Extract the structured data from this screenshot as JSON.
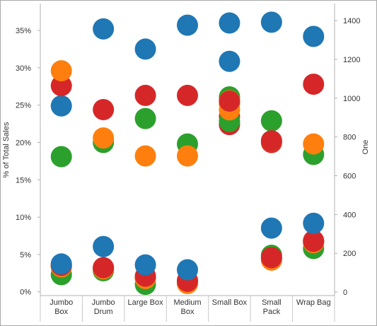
{
  "chart_data": {
    "type": "scatter",
    "categories": [
      "Jumbo Box",
      "Jumbo Drum",
      "Large Box",
      "Medium Box",
      "Small Box",
      "Small Pack",
      "Wrap Bag"
    ],
    "category_labels": [
      [
        "Jumbo",
        "Box"
      ],
      [
        "Jumbo",
        "Drum"
      ],
      [
        "Large Box"
      ],
      [
        "Medium",
        "Box"
      ],
      [
        "Small Box"
      ],
      [
        "Small",
        "Pack"
      ],
      [
        "Wrap Bag"
      ]
    ],
    "left_axis": {
      "label": "% of Total Sales",
      "ylim": [
        -0.5,
        38.6
      ],
      "ticks": [
        0,
        5,
        10,
        15,
        20,
        25,
        30,
        35
      ],
      "tick_labels": [
        "0%",
        "5%",
        "10%",
        "15%",
        "20%",
        "25%",
        "30%",
        "35%"
      ]
    },
    "right_axis": {
      "label": "One",
      "ylim": [
        -18,
        1488
      ],
      "ticks": [
        0,
        200,
        400,
        600,
        800,
        1000,
        1200,
        1400
      ],
      "tick_labels": [
        "0",
        "200",
        "400",
        "600",
        "800",
        "1000",
        "1200",
        "1400"
      ]
    },
    "grid": false,
    "legend": "none",
    "series": [
      {
        "color": "#1f77b4",
        "axis": "left",
        "values": [
          24.9,
          35.2,
          32.5,
          35.7,
          36.0,
          36.1,
          34.2
        ]
      },
      {
        "color": "#d62728",
        "axis": "left",
        "values": [
          27.6,
          24.4,
          26.3,
          26.3,
          22.4,
          20.0,
          27.8
        ]
      },
      {
        "color": "#2ca02c",
        "axis": "left",
        "values": [
          18.1,
          20.0,
          23.2,
          19.8,
          26.1,
          22.9,
          18.4
        ]
      },
      {
        "color": "#ff7f0e",
        "axis": "left",
        "values": [
          29.6,
          20.6,
          18.2,
          18.2,
          25.6,
          20.2,
          19.8
        ]
      },
      {
        "color": "#d62728",
        "axis": "right",
        "values": [
          135,
          125,
          75,
          60,
          905,
          780,
          265
        ]
      },
      {
        "color": "#2ca02c",
        "axis": "right",
        "values": [
          90,
          110,
          40,
          45,
          880,
          190,
          225
        ]
      },
      {
        "color": "#ff7f0e",
        "axis": "right",
        "values": [
          140,
          125,
          70,
          45,
          940,
          165,
          255
        ]
      },
      {
        "color": "#ff7f0e",
        "axis": "right",
        "values": [
          130,
          120,
          78,
          52,
          970,
          175,
          260
        ]
      },
      {
        "color": "#d62728",
        "axis": "right",
        "values": [
          138,
          126,
          82,
          56,
          985,
          178,
          262
        ]
      },
      {
        "color": "#1f77b4",
        "axis": "right",
        "values": [
          145,
          235,
          140,
          115,
          1190,
          330,
          355
        ]
      }
    ]
  }
}
